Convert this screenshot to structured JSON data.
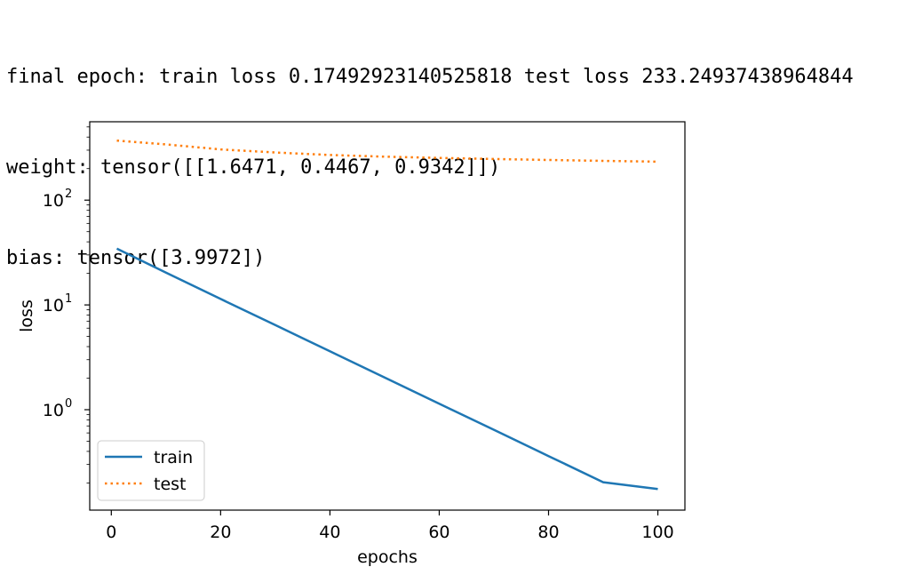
{
  "console": {
    "lines": [
      "final epoch: train loss 0.17492923140525818 test loss 233.24937438964844",
      "weight: tensor([[1.6471, 0.4467, 0.9342]])",
      "bias: tensor([3.9972])"
    ]
  },
  "chart_data": {
    "type": "line",
    "title": "",
    "xlabel": "epochs",
    "ylabel": "loss",
    "x_scale": "linear",
    "y_scale": "log",
    "xlim": [
      -3.95,
      104.95
    ],
    "ylim": [
      0.11,
      560
    ],
    "x_ticks": [
      0,
      20,
      40,
      60,
      80,
      100
    ],
    "x_tick_labels": [
      "0",
      "20",
      "40",
      "60",
      "80",
      "100"
    ],
    "y_ticks": [
      1,
      10,
      100
    ],
    "y_tick_labels": [
      {
        "base": "10",
        "exp": "0"
      },
      {
        "base": "10",
        "exp": "1"
      },
      {
        "base": "10",
        "exp": "2"
      }
    ],
    "grid": false,
    "legend_position": "lower-left",
    "series": [
      {
        "name": "train",
        "style": "solid",
        "color": "#1f77b4",
        "x": [
          1,
          10,
          20,
          30,
          40,
          50,
          60,
          70,
          80,
          90,
          100
        ],
        "values": [
          34.5,
          20.3,
          11.4,
          6.42,
          3.61,
          2.03,
          1.14,
          0.643,
          0.361,
          0.203,
          0.175
        ]
      },
      {
        "name": "test",
        "style": "dotted",
        "color": "#ff7f0e",
        "x": [
          1,
          10,
          20,
          30,
          40,
          50,
          60,
          70,
          80,
          90,
          100
        ],
        "values": [
          370,
          340,
          305,
          285,
          270,
          260,
          253,
          247,
          242,
          237,
          233
        ]
      }
    ]
  }
}
